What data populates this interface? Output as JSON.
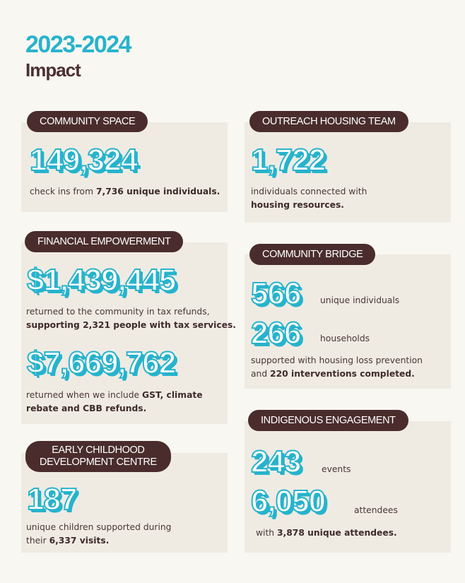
{
  "header": {
    "year": "2023-2024",
    "title": "Impact"
  },
  "community_space": {
    "label": "COMMUNITY SPACE",
    "stat": "149,324",
    "text_pre": "check ins from ",
    "text_bold": "7,736 unique individuals."
  },
  "outreach": {
    "label": "OUTREACH HOUSING TEAM",
    "stat": "1,722",
    "line1": "individuals connected with",
    "line2_bold": "housing resources."
  },
  "financial": {
    "label": "FINANCIAL EMPOWERMENT",
    "stat1": "$1,439,445",
    "line1": "returned to the community in tax refunds,",
    "line2_bold": "supporting 2,321 people with tax services.",
    "stat2": "$7,669,762",
    "line3_pre": "returned when we include ",
    "line3_bold": "GST, climate",
    "line4_bold": "rebate and CBB refunds."
  },
  "bridge": {
    "label": "COMMUNITY BRIDGE",
    "stat1": "566",
    "stat1_text": "unique individuals",
    "stat2": "266",
    "stat2_text": "households",
    "line1": "supported with housing loss prevention",
    "line2_pre": "and ",
    "line2_bold": "220 interventions completed."
  },
  "early_childhood": {
    "label_line1": "EARLY CHILDHOOD",
    "label_line2": "DEVELOPMENT CENTRE",
    "stat": "187",
    "line1": "unique children supported during",
    "line2_pre": "their ",
    "line2_bold": "6,337 visits."
  },
  "indigenous": {
    "label": "INDIGENOUS ENGAGEMENT",
    "stat1": "243",
    "stat1_text": "events",
    "stat2": "6,050",
    "stat2_text": "attendees",
    "line1_pre": "with ",
    "line1_bold": "3,878 unique attendees."
  }
}
